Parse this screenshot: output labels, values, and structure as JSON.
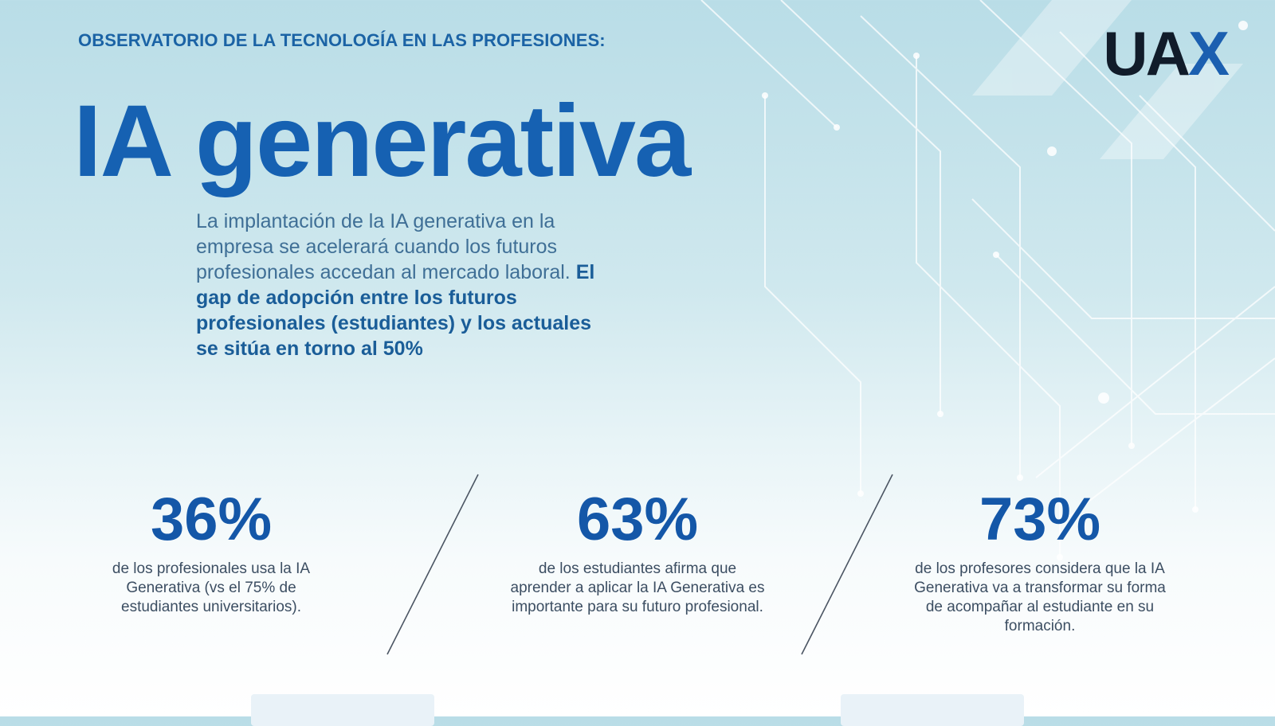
{
  "header": {
    "kicker": "OBSERVATORIO DE LA TECNOLOGÍA EN LAS PROFESIONES:",
    "logo_main": "UA",
    "logo_accent": "X",
    "title": "IA generativa"
  },
  "intro": {
    "text": "La implantación de la IA generativa en la empresa se acelerará cuando los futuros profesionales accedan al mercado laboral.",
    "highlight": "El gap de adopción entre los futuros profesionales (estudiantes) y los actuales se sitúa en torno al 50%"
  },
  "stats": [
    {
      "value": "36%",
      "description": "de los profesionales usa la IA Generativa (vs el 75% de estudiantes universitarios)."
    },
    {
      "value": "63%",
      "description": "de los estudiantes afirma que aprender a aplicar la IA Generativa es importante para su futuro profesional."
    },
    {
      "value": "73%",
      "description": "de los profesores considera que la IA Generativa va a transformar su forma de acompañar al estudiante en su formación."
    }
  ],
  "colors": {
    "accent_blue": "#1661b2",
    "logo_dark": "#111c2a",
    "body_text": "#3c4e62"
  }
}
